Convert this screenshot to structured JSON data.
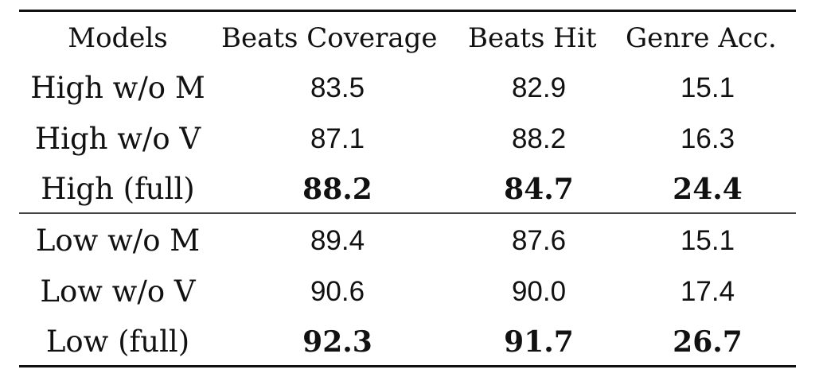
{
  "table": {
    "headers": [
      "Models",
      "Beats Coverage",
      "Beats Hit",
      "Genre Acc."
    ],
    "groups": [
      {
        "rows": [
          {
            "model": "High w/o M",
            "beats_coverage": "83.5",
            "beats_hit": "82.9",
            "genre_acc": "15.1",
            "bold": false
          },
          {
            "model": "High w/o V",
            "beats_coverage": "87.1",
            "beats_hit": "88.2",
            "genre_acc": "16.3",
            "bold": false
          },
          {
            "model": "High (full)",
            "beats_coverage": "88.2",
            "beats_hit": "84.7",
            "genre_acc": "24.4",
            "bold": true
          }
        ]
      },
      {
        "rows": [
          {
            "model": "Low w/o M",
            "beats_coverage": "89.4",
            "beats_hit": "87.6",
            "genre_acc": "15.1",
            "bold": false
          },
          {
            "model": "Low w/o V",
            "beats_coverage": "90.6",
            "beats_hit": "90.0",
            "genre_acc": "17.4",
            "bold": false
          },
          {
            "model": "Low (full)",
            "beats_coverage": "92.3",
            "beats_hit": "91.7",
            "genre_acc": "26.7",
            "bold": true
          }
        ]
      }
    ]
  }
}
